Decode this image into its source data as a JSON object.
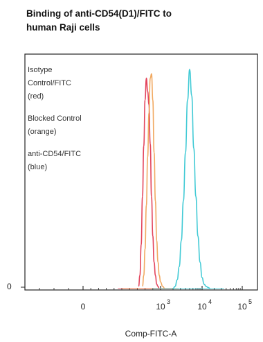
{
  "title_lines": [
    "Binding of anti-CD54(D1)/FITC to",
    "human Raji cells"
  ],
  "chart_data": {
    "type": "line",
    "title": "Binding of anti-CD54(D1)/FITC to human Raji cells",
    "xlabel": "Comp-FITC-A",
    "ylabel": "",
    "x_scale": "biexponential",
    "x_ticks": [
      {
        "value": "0",
        "exp": ""
      },
      {
        "value": "10",
        "exp": "3"
      },
      {
        "value": "10",
        "exp": "4"
      },
      {
        "value": "10",
        "exp": "5"
      }
    ],
    "y_ticks": [
      "0"
    ],
    "legend_placement": "top-left, inside plot",
    "legend": [
      {
        "lines": [
          "Isotype",
          "Control/FITC",
          "(red)"
        ],
        "color": "#e0304a"
      },
      {
        "lines": [
          "Blocked Control",
          "(orange)"
        ],
        "color": "#f0a050"
      },
      {
        "lines": [
          "anti-CD54/FITC",
          "(blue)"
        ],
        "color": "#2cc4d0"
      }
    ],
    "series": [
      {
        "color": "#e0304a",
        "x": [
          2.15,
          2.2,
          2.25,
          2.3,
          2.35,
          2.4,
          2.45,
          2.5,
          2.55,
          2.6,
          2.65,
          2.7,
          2.75,
          2.8,
          2.85,
          2.9,
          2.95
        ],
        "y": [
          0.01,
          0.06,
          0.2,
          0.42,
          0.65,
          0.86,
          0.96,
          0.9,
          0.84,
          0.66,
          0.42,
          0.24,
          0.12,
          0.06,
          0.02,
          0.01,
          0.0
        ]
      },
      {
        "color": "#f0a050",
        "x": [
          2.3,
          2.35,
          2.4,
          2.45,
          2.5,
          2.55,
          2.6,
          2.65,
          2.7,
          2.75,
          2.8,
          2.85,
          2.9,
          2.95,
          3.0,
          3.05,
          3.1
        ],
        "y": [
          0.01,
          0.06,
          0.18,
          0.38,
          0.6,
          0.8,
          0.96,
          0.98,
          0.86,
          0.62,
          0.4,
          0.22,
          0.12,
          0.06,
          0.03,
          0.01,
          0.0
        ]
      },
      {
        "color": "#2cc4d0",
        "x": [
          3.3,
          3.35,
          3.4,
          3.45,
          3.5,
          3.55,
          3.6,
          3.65,
          3.7,
          3.75,
          3.8,
          3.85,
          3.9,
          3.95,
          4.0,
          4.05,
          4.1,
          4.15,
          4.2
        ],
        "y": [
          0.0,
          0.01,
          0.04,
          0.1,
          0.22,
          0.4,
          0.62,
          0.86,
          1.0,
          0.88,
          0.64,
          0.42,
          0.24,
          0.12,
          0.05,
          0.02,
          0.01,
          0.005,
          0.0
        ]
      }
    ]
  }
}
